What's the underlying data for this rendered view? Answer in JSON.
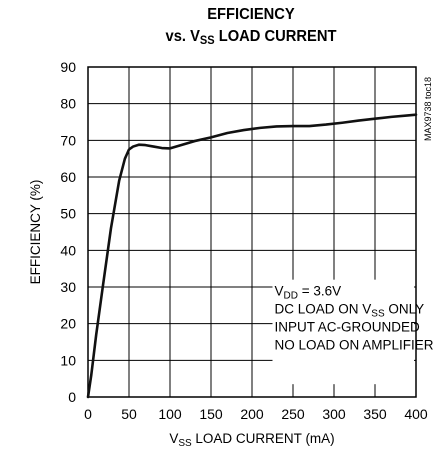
{
  "title_line1": "EFFICIENCY",
  "title_line2_pre": "vs. V",
  "title_line2_sub": "SS",
  "title_line2_post": " LOAD CURRENT",
  "side_code": "MAX9738 toc18",
  "chart_data": {
    "type": "line",
    "title": "EFFICIENCY vs. VSS LOAD CURRENT",
    "xlabel": "VSS LOAD CURRENT (mA)",
    "xlabel_parts": {
      "pre": "V",
      "sub": "SS",
      "post": " LOAD CURRENT (mA)"
    },
    "ylabel": "EFFICIENCY (%)",
    "xlim": [
      0,
      400
    ],
    "ylim": [
      0,
      90
    ],
    "xticks": [
      0,
      50,
      100,
      150,
      200,
      250,
      300,
      350,
      400
    ],
    "yticks": [
      0,
      10,
      20,
      30,
      40,
      50,
      60,
      70,
      80,
      90
    ],
    "grid": true,
    "series": [
      {
        "x": [
          0,
          4,
          10,
          18,
          28,
          38,
          45,
          50,
          55,
          62,
          70,
          80,
          90,
          100,
          115,
          130,
          150,
          170,
          190,
          210,
          230,
          250,
          270,
          290,
          310,
          330,
          350,
          370,
          390,
          400
        ],
        "y": [
          0,
          6,
          17,
          30,
          46,
          59,
          65,
          67.5,
          68.3,
          68.8,
          68.7,
          68.3,
          67.9,
          67.8,
          68.8,
          69.8,
          70.8,
          72,
          72.8,
          73.4,
          73.8,
          73.9,
          73.9,
          74.3,
          74.8,
          75.4,
          75.9,
          76.4,
          76.8,
          77
        ]
      }
    ],
    "annotation": [
      {
        "pre": "V",
        "sub": "DD",
        "post": " = 3.6V"
      },
      {
        "pre": "DC LOAD ON V",
        "sub": "SS",
        "post": " ONLY"
      },
      {
        "pre": "INPUT AC-GROUNDED",
        "sub": "",
        "post": ""
      },
      {
        "pre": "NO LOAD ON AMPLIFIER",
        "sub": "",
        "post": ""
      }
    ]
  }
}
